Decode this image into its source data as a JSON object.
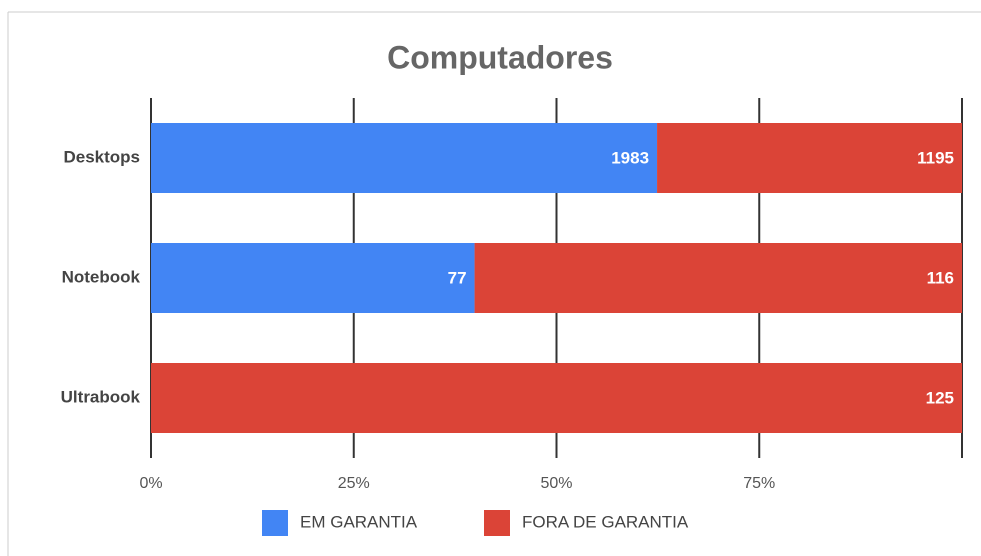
{
  "chart_data": {
    "type": "bar",
    "orientation": "horizontal",
    "stack": "percent",
    "title": "Computadores",
    "categories": [
      "Desktops",
      "Notebook",
      "Ultrabook"
    ],
    "series": [
      {
        "name": "EM GARANTIA",
        "color": "#4285f4",
        "values": [
          1983,
          77,
          0
        ]
      },
      {
        "name": "FORA DE GARANTIA",
        "color": "#db4437",
        "values": [
          1195,
          116,
          125
        ]
      }
    ],
    "xlim": [
      0,
      100
    ],
    "xticks": [
      {
        "value": 0,
        "label": "0%"
      },
      {
        "value": 25,
        "label": "25%"
      },
      {
        "value": 50,
        "label": "50%"
      },
      {
        "value": 75,
        "label": "75%"
      }
    ],
    "grid": true,
    "legend": "bottom"
  }
}
